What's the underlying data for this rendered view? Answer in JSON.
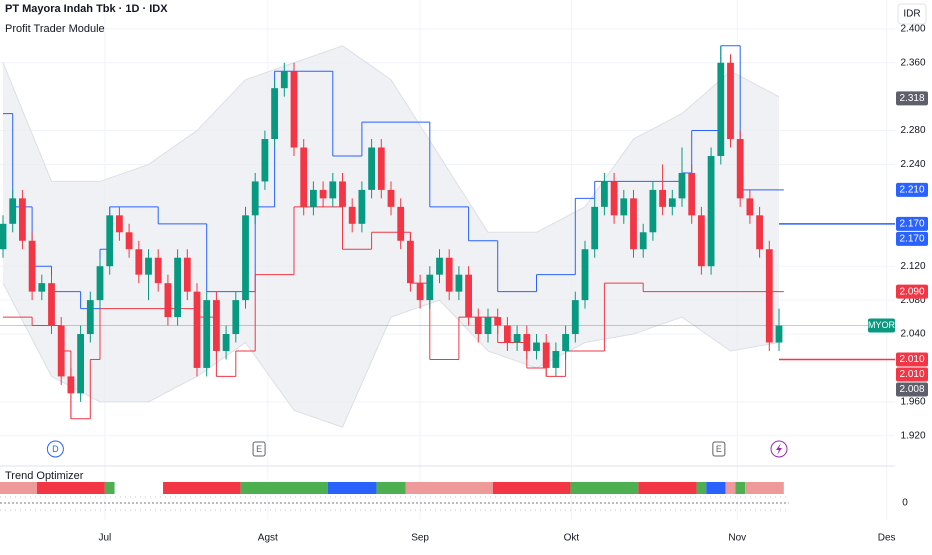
{
  "chart_data": {
    "type": "candlestick",
    "title": "PT Mayora Indah Tbk · 1D · IDX",
    "indicator_title": "Profit Trader Module",
    "currency": "IDR",
    "up_color": "#089981",
    "down_color": "#f23645",
    "open": [
      2.14,
      2.17,
      2.2,
      2.15,
      2.09,
      2.1,
      2.05,
      1.99,
      1.97,
      2.04,
      2.08,
      2.12,
      2.18,
      2.16,
      2.14,
      2.11,
      2.13,
      2.1,
      2.06,
      2.13,
      2.09,
      2.0,
      2.08,
      2.02,
      2.04,
      2.08,
      2.18,
      2.22,
      2.27,
      2.33,
      2.35,
      2.26,
      2.19,
      2.21,
      2.2,
      2.22,
      2.19,
      2.17,
      2.21,
      2.26,
      2.21,
      2.19,
      2.15,
      2.1,
      2.08,
      2.11,
      2.13,
      2.09,
      2.11,
      2.06,
      2.04,
      2.06,
      2.05,
      2.03,
      2.04,
      2.02,
      2.03,
      2.0,
      2.02,
      2.04,
      2.08,
      2.14,
      2.19,
      2.22,
      2.18,
      2.2,
      2.14,
      2.16,
      2.21,
      2.19,
      2.2,
      2.23,
      2.18,
      2.12,
      2.25,
      2.36,
      2.27,
      2.2,
      2.18,
      2.14,
      2.03
    ],
    "high": [
      2.18,
      2.21,
      2.21,
      2.16,
      2.11,
      2.11,
      2.06,
      2.0,
      2.05,
      2.09,
      2.13,
      2.19,
      2.19,
      2.17,
      2.15,
      2.14,
      2.14,
      2.11,
      2.14,
      2.14,
      2.1,
      2.09,
      2.09,
      2.05,
      2.09,
      2.19,
      2.23,
      2.28,
      2.34,
      2.36,
      2.36,
      2.27,
      2.22,
      2.22,
      2.23,
      2.23,
      2.2,
      2.22,
      2.27,
      2.27,
      2.22,
      2.2,
      2.16,
      2.11,
      2.12,
      2.14,
      2.14,
      2.12,
      2.12,
      2.07,
      2.07,
      2.07,
      2.06,
      2.05,
      2.05,
      2.04,
      2.04,
      2.03,
      2.05,
      2.09,
      2.15,
      2.2,
      2.23,
      2.23,
      2.21,
      2.21,
      2.17,
      2.22,
      2.24,
      2.21,
      2.26,
      2.24,
      2.19,
      2.26,
      2.38,
      2.37,
      2.28,
      2.21,
      2.19,
      2.15,
      2.07
    ],
    "low": [
      2.13,
      2.16,
      2.14,
      2.08,
      2.08,
      2.04,
      1.98,
      1.94,
      1.96,
      2.03,
      2.07,
      2.11,
      2.15,
      2.13,
      2.1,
      2.08,
      2.09,
      2.05,
      2.05,
      2.08,
      1.99,
      1.99,
      2.01,
      2.01,
      2.03,
      2.07,
      2.17,
      2.21,
      2.26,
      2.32,
      2.25,
      2.18,
      2.18,
      2.19,
      2.19,
      2.18,
      2.16,
      2.16,
      2.2,
      2.2,
      2.18,
      2.14,
      2.09,
      2.07,
      2.07,
      2.1,
      2.08,
      2.08,
      2.05,
      2.03,
      2.03,
      2.04,
      2.02,
      2.02,
      2.01,
      2.01,
      1.99,
      1.99,
      2.01,
      2.03,
      2.07,
      2.13,
      2.18,
      2.17,
      2.17,
      2.13,
      2.13,
      2.15,
      2.18,
      2.18,
      2.19,
      2.17,
      2.11,
      2.11,
      2.24,
      2.26,
      2.19,
      2.17,
      2.13,
      2.02,
      2.02
    ],
    "close": [
      2.17,
      2.2,
      2.15,
      2.09,
      2.1,
      2.05,
      1.99,
      1.97,
      2.04,
      2.08,
      2.12,
      2.18,
      2.16,
      2.14,
      2.11,
      2.13,
      2.1,
      2.06,
      2.13,
      2.09,
      2.0,
      2.08,
      2.02,
      2.04,
      2.08,
      2.18,
      2.22,
      2.27,
      2.33,
      2.35,
      2.26,
      2.19,
      2.21,
      2.2,
      2.22,
      2.19,
      2.17,
      2.21,
      2.26,
      2.21,
      2.19,
      2.15,
      2.1,
      2.08,
      2.11,
      2.13,
      2.09,
      2.11,
      2.06,
      2.04,
      2.06,
      2.05,
      2.03,
      2.04,
      2.02,
      2.03,
      2.0,
      2.02,
      2.04,
      2.08,
      2.14,
      2.19,
      2.22,
      2.18,
      2.2,
      2.14,
      2.16,
      2.21,
      2.19,
      2.2,
      2.23,
      2.18,
      2.12,
      2.25,
      2.36,
      2.27,
      2.2,
      2.18,
      2.14,
      2.03,
      2.05
    ],
    "bands": {
      "x": [
        0,
        5,
        10,
        15,
        20,
        25,
        30,
        35,
        40,
        45,
        50,
        55,
        60,
        65,
        70,
        75,
        80
      ],
      "upper": [
        2.36,
        2.22,
        2.22,
        2.24,
        2.28,
        2.34,
        2.36,
        2.38,
        2.34,
        2.25,
        2.16,
        2.16,
        2.19,
        2.27,
        2.3,
        2.35,
        2.32
      ],
      "lower": [
        2.1,
        1.99,
        1.96,
        1.96,
        1.99,
        2.03,
        1.95,
        1.93,
        2.06,
        2.08,
        2.02,
        2.0,
        2.03,
        2.04,
        2.06,
        2.02,
        2.03
      ]
    },
    "resistance": {
      "color": "#2962ff",
      "x": [
        0,
        1,
        3,
        5,
        8,
        10,
        11,
        16,
        21,
        26,
        28,
        34,
        37,
        44,
        48,
        51,
        55,
        59,
        61,
        70,
        71,
        74,
        76,
        80
      ],
      "values": [
        2.3,
        2.19,
        2.12,
        2.09,
        2.07,
        2.14,
        2.19,
        2.17,
        2.09,
        2.19,
        2.35,
        2.25,
        2.29,
        2.19,
        2.15,
        2.09,
        2.11,
        2.2,
        2.22,
        2.23,
        2.28,
        2.38,
        2.21,
        2.21
      ]
    },
    "support": {
      "color": "#f23645",
      "x": [
        0,
        3,
        6,
        7,
        9,
        10,
        20,
        22,
        24,
        26,
        30,
        35,
        38,
        42,
        44,
        47,
        51,
        54,
        56,
        58,
        62,
        66,
        80
      ],
      "values": [
        2.06,
        2.05,
        2.02,
        1.94,
        2.01,
        2.07,
        2.06,
        1.99,
        2.02,
        2.11,
        2.19,
        2.14,
        2.16,
        2.1,
        2.01,
        2.06,
        2.03,
        2.0,
        1.99,
        2.02,
        2.1,
        2.09,
        2.09
      ]
    },
    "level_lines": [
      {
        "value": 2.17,
        "color": "#2962ff"
      },
      {
        "value": 2.01,
        "color": "#f23645"
      }
    ],
    "symbol_label": {
      "value": 2.05,
      "label": "MYOR",
      "color": "#089981"
    },
    "price_labels": [
      {
        "value": 2.318,
        "label": "2.318",
        "color": "#5d606b"
      },
      {
        "value": 2.21,
        "label": "2.210",
        "color": "#2962ff"
      },
      {
        "value": 2.17,
        "label": "2.170",
        "color": "#2962ff"
      },
      {
        "value": 2.17,
        "label": "2.170",
        "color": "#2962ff"
      },
      {
        "value": 2.09,
        "label": "2.090",
        "color": "#f23645"
      },
      {
        "value": 2.01,
        "label": "2.010",
        "color": "#f23645"
      },
      {
        "value": 2.01,
        "label": "2.010",
        "color": "#f23645"
      },
      {
        "value": 2.008,
        "label": "2.008",
        "color": "#5d606b"
      }
    ],
    "ylim": [
      1.915,
      2.434
    ],
    "yticks": [
      {
        "value": 2.4,
        "label": "2.400"
      },
      {
        "value": 2.36,
        "label": "2.360"
      },
      {
        "value": 2.28,
        "label": "2.280"
      },
      {
        "value": 2.24,
        "label": "2.240"
      },
      {
        "value": 2.12,
        "label": "2.120"
      },
      {
        "value": 2.08,
        "label": "2.080"
      },
      {
        "value": 2.04,
        "label": "2.040"
      },
      {
        "value": 1.96,
        "label": "1.960"
      },
      {
        "value": 1.92,
        "label": "1.920"
      }
    ],
    "xlim": [
      -0.31,
      91.96
    ],
    "date_labels": [
      {
        "index": 10.5,
        "label": "Jul"
      },
      {
        "index": 27.3,
        "label": "Agst"
      },
      {
        "index": 43,
        "label": "Sep"
      },
      {
        "index": 58.6,
        "label": "Okt"
      },
      {
        "index": 75.7,
        "label": "Nov"
      },
      {
        "index": 91.1,
        "label": "Des"
      }
    ],
    "events": [
      {
        "index": 5.4,
        "label": "D",
        "color": "#2962ff"
      },
      {
        "index": 26.4,
        "label": "E",
        "color": "#5d606b"
      },
      {
        "index": 73.8,
        "label": "E",
        "color": "#5d606b"
      }
    ],
    "trend_optimizer": {
      "title": "Trend Optimizer",
      "yticks": [
        0
      ],
      "segments": [
        {
          "start": 0,
          "end": 3,
          "color": "#ef9a9a"
        },
        {
          "start": 4,
          "end": 10,
          "color": "#f23645"
        },
        {
          "start": 11,
          "end": 11,
          "color": "#4caf50"
        },
        {
          "start": 17,
          "end": 24,
          "color": "#f23645"
        },
        {
          "start": 25,
          "end": 33,
          "color": "#4caf50"
        },
        {
          "start": 34,
          "end": 38,
          "color": "#2962ff"
        },
        {
          "start": 39,
          "end": 41,
          "color": "#4caf50"
        },
        {
          "start": 42,
          "end": 50,
          "color": "#ef9a9a"
        },
        {
          "start": 51,
          "end": 58,
          "color": "#f23645"
        },
        {
          "start": 59,
          "end": 65,
          "color": "#4caf50"
        },
        {
          "start": 66,
          "end": 71,
          "color": "#f23645"
        },
        {
          "start": 72,
          "end": 72,
          "color": "#4caf50"
        },
        {
          "start": 73,
          "end": 74,
          "color": "#2962ff"
        },
        {
          "start": 75,
          "end": 75,
          "color": "#ef9a9a"
        },
        {
          "start": 76,
          "end": 76,
          "color": "#4caf50"
        },
        {
          "start": 77,
          "end": 80,
          "color": "#ef9a9a"
        }
      ]
    }
  }
}
